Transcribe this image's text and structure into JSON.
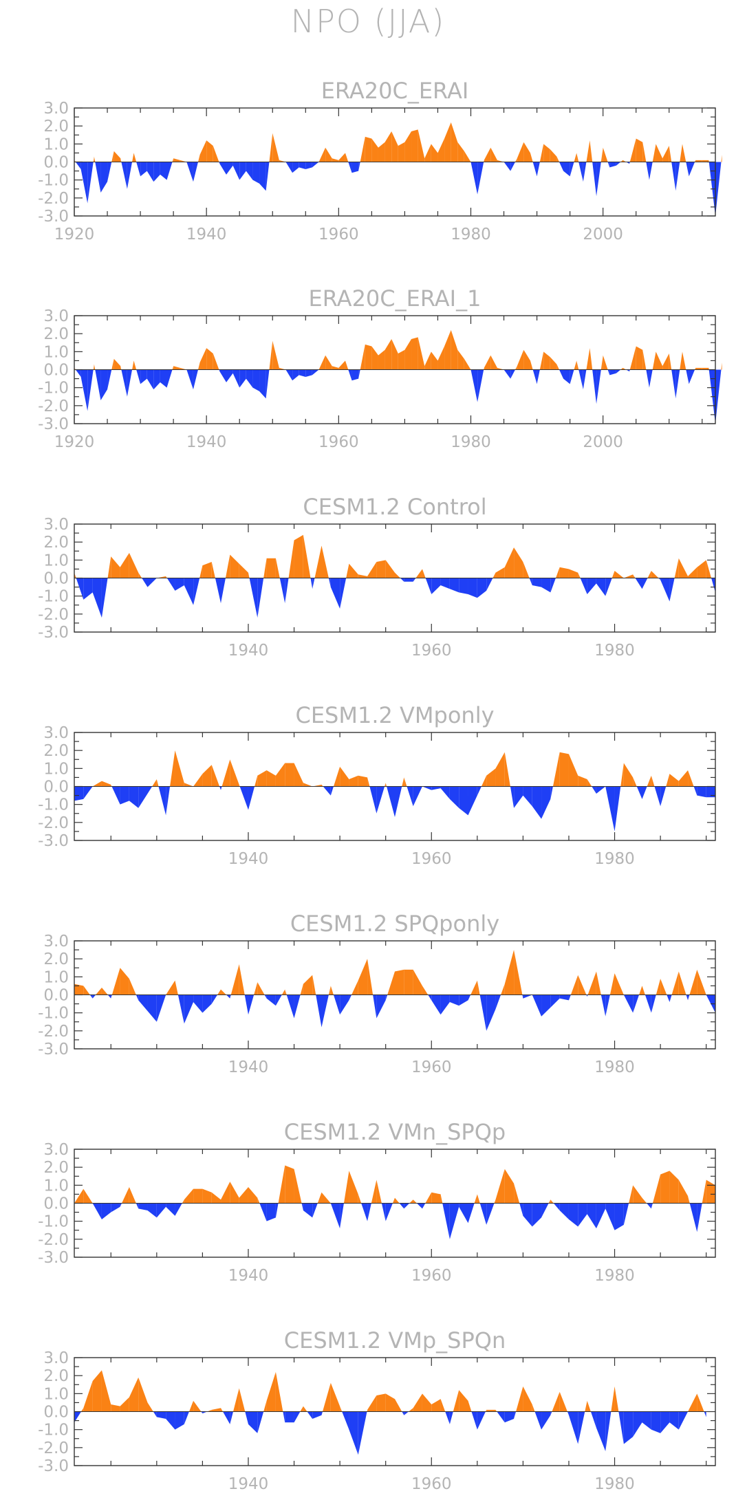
{
  "figure_title": "NPO (JJA)",
  "colors": {
    "positive": "#fa8215",
    "negative": "#1f3ff5",
    "text": "#b4b4b4",
    "frame": "#333333"
  },
  "chart_data": [
    {
      "type": "area",
      "title": "ERA20C_ERAI",
      "xlim": [
        1920,
        2017
      ],
      "ylim": [
        -3.0,
        3.0
      ],
      "yticks": [
        "3.0",
        "2.0",
        "1.0",
        "0.0",
        "-1.0",
        "-2.0",
        "-3.0"
      ],
      "xticks": [
        "1920",
        "1940",
        "1960",
        "1980",
        "2000"
      ],
      "x_start": 1920,
      "values": [
        0.1,
        -0.4,
        -2.3,
        0.3,
        -1.7,
        -1.1,
        0.6,
        0.2,
        -1.5,
        0.5,
        -0.8,
        -0.5,
        -1.1,
        -0.7,
        -1.0,
        0.2,
        0.1,
        0.0,
        -1.1,
        0.4,
        1.2,
        0.9,
        -0.1,
        -0.7,
        -0.2,
        -1.0,
        -0.5,
        -1.0,
        -1.2,
        -1.6,
        1.6,
        0.1,
        0.0,
        -0.6,
        -0.3,
        -0.4,
        -0.3,
        0.0,
        0.8,
        0.2,
        0.1,
        0.5,
        -0.6,
        -0.5,
        1.4,
        1.3,
        0.8,
        1.1,
        1.7,
        0.9,
        1.1,
        1.7,
        1.8,
        0.2,
        1.0,
        0.5,
        1.3,
        2.2,
        1.1,
        0.6,
        0.0,
        -1.8,
        0.1,
        0.8,
        0.1,
        0.0,
        -0.5,
        0.2,
        1.1,
        0.5,
        -0.8,
        1.0,
        0.7,
        0.3,
        -0.5,
        -0.8,
        0.5,
        -1.1,
        1.2,
        -1.9,
        0.8,
        -0.3,
        -0.2,
        0.1,
        -0.1,
        1.3,
        1.1,
        -1.0,
        1.0,
        0.2,
        0.9,
        -1.6,
        1.0,
        -0.8,
        0.1,
        0.1,
        0.1,
        -3.0,
        0.4
      ]
    },
    {
      "type": "area",
      "title": "ERA20C_ERAI_1",
      "xlim": [
        1920,
        2017
      ],
      "ylim": [
        -3.0,
        3.0
      ],
      "yticks": [
        "3.0",
        "2.0",
        "1.0",
        "0.0",
        "-1.0",
        "-2.0",
        "-3.0"
      ],
      "xticks": [
        "1920",
        "1940",
        "1960",
        "1980",
        "2000"
      ],
      "x_start": 1920,
      "values": [
        0.1,
        -0.4,
        -2.3,
        0.3,
        -1.7,
        -1.1,
        0.6,
        0.2,
        -1.5,
        0.5,
        -0.8,
        -0.5,
        -1.1,
        -0.7,
        -1.0,
        0.2,
        0.1,
        0.0,
        -1.1,
        0.4,
        1.2,
        0.9,
        -0.1,
        -0.7,
        -0.2,
        -1.0,
        -0.5,
        -1.0,
        -1.2,
        -1.6,
        1.6,
        0.1,
        0.0,
        -0.6,
        -0.3,
        -0.4,
        -0.3,
        0.0,
        0.8,
        0.2,
        0.1,
        0.5,
        -0.6,
        -0.5,
        1.4,
        1.3,
        0.8,
        1.1,
        1.7,
        0.9,
        1.1,
        1.7,
        1.8,
        0.2,
        1.0,
        0.5,
        1.3,
        2.2,
        1.1,
        0.6,
        0.0,
        -1.8,
        0.1,
        0.8,
        0.1,
        0.0,
        -0.5,
        0.2,
        1.1,
        0.5,
        -0.8,
        1.0,
        0.7,
        0.3,
        -0.5,
        -0.8,
        0.5,
        -1.1,
        1.2,
        -1.9,
        0.8,
        -0.3,
        -0.2,
        0.1,
        -0.1,
        1.3,
        1.1,
        -1.0,
        1.0,
        0.2,
        0.9,
        -1.6,
        1.0,
        -0.8,
        0.1,
        0.1,
        0.1,
        -3.0,
        0.4
      ]
    },
    {
      "type": "area",
      "title": "CESM1.2 Control",
      "xlim": [
        1921,
        1991
      ],
      "ylim": [
        -3.0,
        3.0
      ],
      "yticks": [
        "3.0",
        "2.0",
        "1.0",
        "0.0",
        "-1.0",
        "-2.0",
        "-3.0"
      ],
      "xticks": [
        "1940",
        "1960",
        "1980"
      ],
      "x_start": 1921,
      "values": [
        0.3,
        -1.2,
        -0.8,
        -2.2,
        1.2,
        0.6,
        1.4,
        0.3,
        -0.5,
        0.0,
        0.1,
        -0.7,
        -0.4,
        -1.5,
        0.7,
        0.9,
        -1.4,
        1.3,
        0.8,
        0.3,
        -2.2,
        1.1,
        1.1,
        -1.4,
        2.1,
        2.4,
        -0.6,
        1.8,
        -0.5,
        -1.7,
        0.8,
        0.2,
        0.1,
        0.9,
        1.0,
        0.3,
        -0.2,
        -0.2,
        0.5,
        -0.9,
        -0.4,
        -0.6,
        -0.8,
        -0.9,
        -1.1,
        -0.7,
        0.3,
        0.6,
        1.7,
        0.9,
        -0.4,
        -0.5,
        -0.8,
        0.6,
        0.5,
        0.3,
        -0.9,
        -0.3,
        -1.0,
        0.4,
        0.0,
        0.2,
        -0.6,
        0.4,
        -0.1,
        -1.3,
        1.1,
        0.1,
        0.6,
        1.0,
        -0.8
      ]
    },
    {
      "type": "area",
      "title": "CESM1.2  VMponly",
      "xlim": [
        1921,
        1991
      ],
      "ylim": [
        -3.0,
        3.0
      ],
      "yticks": [
        "3.0",
        "2.0",
        "1.0",
        "0.0",
        "-1.0",
        "-2.0",
        "-3.0"
      ],
      "xticks": [
        "1940",
        "1960",
        "1980"
      ],
      "x_start": 1921,
      "values": [
        -0.8,
        -0.7,
        0.0,
        0.3,
        0.1,
        -1.0,
        -0.8,
        -1.2,
        -0.4,
        0.4,
        -1.6,
        2.0,
        0.2,
        0.0,
        0.7,
        1.2,
        -0.2,
        1.5,
        0.1,
        -1.3,
        0.6,
        0.9,
        0.6,
        1.3,
        1.3,
        0.2,
        0.0,
        0.1,
        -0.5,
        1.1,
        0.4,
        0.6,
        0.5,
        -1.5,
        0.2,
        -1.7,
        0.5,
        -1.1,
        0.0,
        -0.2,
        -0.1,
        -0.7,
        -1.2,
        -1.6,
        -0.5,
        0.6,
        1.0,
        1.9,
        -1.2,
        -0.5,
        -1.1,
        -1.8,
        -0.7,
        1.9,
        1.8,
        0.6,
        0.4,
        -0.4,
        0.0,
        -2.5,
        1.3,
        0.5,
        -0.7,
        0.6,
        -1.1,
        0.7,
        0.3,
        0.9,
        -0.5,
        -0.6,
        -0.6
      ]
    },
    {
      "type": "area",
      "title": "CESM1.2  SPQponly",
      "xlim": [
        1921,
        1991
      ],
      "ylim": [
        -3.0,
        3.0
      ],
      "yticks": [
        "3.0",
        "2.0",
        "1.0",
        "0.0",
        "-1.0",
        "-2.0",
        "-3.0"
      ],
      "xticks": [
        "1940",
        "1960",
        "1980"
      ],
      "x_start": 1921,
      "values": [
        0.6,
        0.5,
        -0.2,
        0.4,
        -0.2,
        1.5,
        0.9,
        -0.3,
        -0.9,
        -1.5,
        0.0,
        0.8,
        -1.6,
        -0.4,
        -1.0,
        -0.5,
        0.3,
        -0.2,
        1.7,
        -1.1,
        0.7,
        -0.2,
        -0.6,
        0.3,
        -1.3,
        0.6,
        1.1,
        -1.8,
        0.5,
        -1.1,
        -0.3,
        0.8,
        2.0,
        -1.3,
        -0.3,
        1.3,
        1.4,
        1.4,
        0.5,
        -0.3,
        -1.1,
        -0.4,
        -0.6,
        -0.3,
        0.8,
        -2.0,
        -0.8,
        0.6,
        2.5,
        -0.2,
        0.0,
        -1.2,
        -0.7,
        -0.2,
        -0.3,
        1.1,
        -0.1,
        1.3,
        -1.2,
        1.2,
        0.0,
        -1.0,
        0.5,
        -1.0,
        0.9,
        -0.4,
        1.3,
        -0.3,
        1.4,
        0.0,
        -1.0
      ]
    },
    {
      "type": "area",
      "title": "CESM1.2  VMn_SPQp",
      "xlim": [
        1921,
        1991
      ],
      "ylim": [
        -3.0,
        3.0
      ],
      "yticks": [
        "3.0",
        "2.0",
        "1.0",
        "0.0",
        "-1.0",
        "-2.0",
        "-3.0"
      ],
      "xticks": [
        "1940",
        "1960",
        "1980"
      ],
      "x_start": 1921,
      "values": [
        0.0,
        0.8,
        0.0,
        -0.9,
        -0.5,
        -0.2,
        0.9,
        -0.3,
        -0.4,
        -0.8,
        -0.2,
        -0.7,
        0.2,
        0.8,
        0.8,
        0.6,
        0.2,
        1.2,
        0.3,
        0.9,
        0.3,
        -1.0,
        -0.8,
        2.1,
        1.9,
        -0.4,
        -0.8,
        0.6,
        0.0,
        -1.4,
        1.8,
        0.5,
        -1.0,
        1.3,
        -1.0,
        0.3,
        -0.3,
        0.2,
        -0.3,
        0.6,
        0.5,
        -2.0,
        -0.2,
        -1.1,
        0.5,
        -1.2,
        0.2,
        1.9,
        1.1,
        -0.7,
        -1.3,
        -0.8,
        0.2,
        -0.4,
        -0.9,
        -1.3,
        -0.6,
        -1.4,
        -0.3,
        -1.5,
        -1.2,
        1.0,
        0.3,
        -0.3,
        1.6,
        1.8,
        1.3,
        0.4,
        -1.6,
        1.3,
        1.0
      ]
    },
    {
      "type": "area",
      "title": "CESM1.2  VMp_SPQn",
      "xlim": [
        1921,
        1991
      ],
      "ylim": [
        -3.0,
        3.0
      ],
      "yticks": [
        "3.0",
        "2.0",
        "1.0",
        "0.0",
        "-1.0",
        "-2.0",
        "-3.0"
      ],
      "xticks": [
        "1940",
        "1960",
        "1980"
      ],
      "x_start": 1921,
      "values": [
        -0.6,
        0.2,
        1.7,
        2.3,
        0.4,
        0.3,
        0.8,
        1.9,
        0.5,
        -0.3,
        -0.4,
        -1.0,
        -0.7,
        0.6,
        -0.1,
        0.1,
        0.2,
        -0.7,
        1.3,
        -0.7,
        -1.2,
        0.6,
        2.2,
        -0.6,
        -0.6,
        0.3,
        -0.4,
        -0.2,
        1.6,
        0.3,
        -1.0,
        -2.4,
        0.1,
        0.9,
        1.0,
        0.7,
        -0.2,
        0.2,
        1.0,
        0.4,
        0.7,
        -0.7,
        1.2,
        0.6,
        -1.0,
        0.1,
        0.1,
        -0.6,
        -0.4,
        1.4,
        0.4,
        -1.0,
        -0.2,
        1.1,
        -0.2,
        -1.8,
        0.6,
        -0.9,
        -2.2,
        1.4,
        -1.8,
        -1.4,
        -0.6,
        -1.0,
        -1.2,
        -0.6,
        -1.0,
        0.0,
        1.0,
        -0.3
      ]
    }
  ]
}
